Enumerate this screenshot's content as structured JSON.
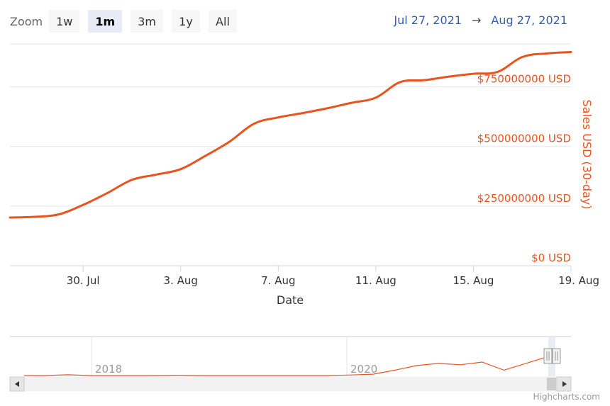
{
  "zoom": {
    "label": "Zoom",
    "buttons": [
      "1w",
      "1m",
      "3m",
      "1y",
      "All"
    ],
    "active": "1m"
  },
  "range": {
    "from": "Jul 27, 2021",
    "arrow": "→",
    "to": "Aug 27, 2021"
  },
  "colors": {
    "series": "#e8541e",
    "axis_label": "#e8541e",
    "range_text": "#335cad"
  },
  "credit": "Highcharts.com",
  "chart_data": {
    "type": "line",
    "xlabel": "Date",
    "ylabel": "Sales USD (30-day)",
    "ylim": [
      0,
      930000000
    ],
    "xlim": [
      "2021-07-27",
      "2021-08-19"
    ],
    "grid": true,
    "y_ticks": [
      {
        "value": 0,
        "label": "$0 USD"
      },
      {
        "value": 250000000,
        "label": "$250000000 USD"
      },
      {
        "value": 500000000,
        "label": "$500000000 USD"
      },
      {
        "value": 750000000,
        "label": "$750000000 USD"
      }
    ],
    "x_ticks": [
      {
        "value": "2021-07-30",
        "label": "30. Jul"
      },
      {
        "value": "2021-08-03",
        "label": "3. Aug"
      },
      {
        "value": "2021-08-07",
        "label": "7. Aug"
      },
      {
        "value": "2021-08-11",
        "label": "11. Aug"
      },
      {
        "value": "2021-08-15",
        "label": "15. Aug"
      },
      {
        "value": "2021-08-19",
        "label": "19. Aug"
      }
    ],
    "series": [
      {
        "points": [
          [
            "2021-07-27",
            202000000
          ],
          [
            "2021-07-28",
            205000000
          ],
          [
            "2021-07-29",
            215000000
          ],
          [
            "2021-07-30",
            255000000
          ],
          [
            "2021-07-31",
            305000000
          ],
          [
            "2021-08-01",
            360000000
          ],
          [
            "2021-08-02",
            382000000
          ],
          [
            "2021-08-03",
            405000000
          ],
          [
            "2021-08-04",
            460000000
          ],
          [
            "2021-08-05",
            520000000
          ],
          [
            "2021-08-06",
            595000000
          ],
          [
            "2021-08-07",
            622000000
          ],
          [
            "2021-08-08",
            640000000
          ],
          [
            "2021-08-09",
            660000000
          ],
          [
            "2021-08-10",
            683000000
          ],
          [
            "2021-08-11",
            705000000
          ],
          [
            "2021-08-12",
            770000000
          ],
          [
            "2021-08-13",
            778000000
          ],
          [
            "2021-08-14",
            793000000
          ],
          [
            "2021-08-15",
            805000000
          ],
          [
            "2021-08-16",
            813000000
          ],
          [
            "2021-08-17",
            875000000
          ],
          [
            "2021-08-18",
            890000000
          ],
          [
            "2021-08-19",
            896000000
          ]
        ]
      }
    ]
  },
  "navigator": {
    "labels": [
      "2018",
      "2020"
    ],
    "series": [
      0,
      0,
      0.03,
      0,
      0,
      0,
      0,
      0.01,
      0,
      0,
      0,
      0,
      0,
      0,
      0,
      0.02,
      0.05,
      0.2,
      0.37,
      0.45,
      0.4,
      0.5,
      0.2,
      0.45,
      0.7
    ]
  }
}
